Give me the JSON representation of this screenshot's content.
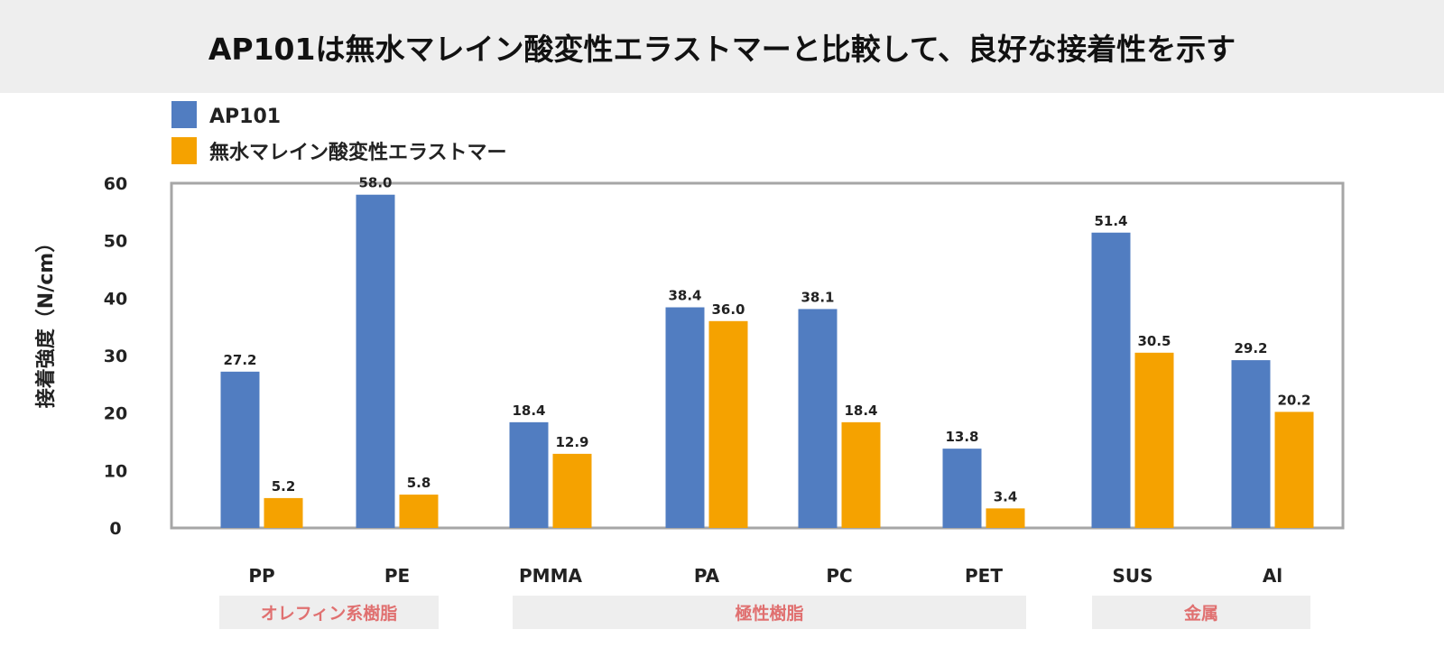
{
  "chart_data": {
    "type": "bar",
    "title": "AP101は無水マレイン酸変性エラストマーと比較して、良好な接着性を示す",
    "ylabel": "接着強度（N/cm）",
    "xlabel": "",
    "ylim": [
      0,
      60
    ],
    "yticks": [
      0,
      10,
      20,
      30,
      40,
      50,
      60
    ],
    "grid": false,
    "legend_position": "top-left",
    "categories": [
      "PP",
      "PE",
      "PMMA",
      "PA",
      "PC",
      "PET",
      "SUS",
      "Al"
    ],
    "series": [
      {
        "name": "AP101",
        "color": "#517dc1",
        "values": [
          27.2,
          58.0,
          18.4,
          38.4,
          38.1,
          13.8,
          51.4,
          29.2
        ]
      },
      {
        "name": "無水マレイン酸変性エラストマー",
        "color": "#f5a200",
        "values": [
          5.2,
          5.8,
          12.9,
          36.0,
          18.4,
          3.4,
          30.5,
          20.2
        ]
      }
    ],
    "groups": [
      {
        "label": "オレフィン系樹脂",
        "categories": [
          "PP",
          "PE"
        ]
      },
      {
        "label": "極性樹脂",
        "categories": [
          "PMMA",
          "PA",
          "PC",
          "PET"
        ]
      },
      {
        "label": "金属",
        "categories": [
          "SUS",
          "Al"
        ]
      }
    ],
    "group_label_color": "#e07070"
  }
}
